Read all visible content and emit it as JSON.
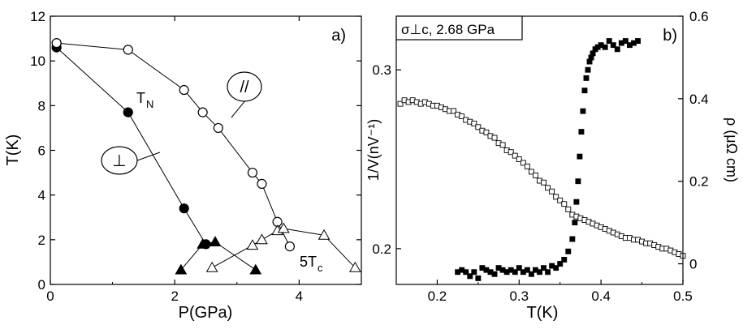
{
  "chart_data": [
    {
      "type": "scatter",
      "panel_label": "a)",
      "xlabel": "P(GPa)",
      "ylabel": "T(K)",
      "xlim": [
        0,
        5
      ],
      "ylim": [
        0,
        12
      ],
      "xticks": [
        0,
        2,
        4
      ],
      "yticks": [
        0,
        2,
        4,
        6,
        8,
        10,
        12
      ],
      "xtick_labels": [
        "0",
        "2",
        "4"
      ],
      "ytick_labels": [
        "0",
        "2",
        "4",
        "6",
        "8",
        "10",
        "12"
      ],
      "grid": false,
      "series": [
        {
          "name": "T_N ⊥",
          "marker": "filled-circle",
          "connected": true,
          "x": [
            0.1,
            1.25,
            2.15,
            2.5
          ],
          "y": [
            10.6,
            7.7,
            3.4,
            1.8
          ]
        },
        {
          "name": "T_N //",
          "marker": "open-circle",
          "connected": true,
          "x": [
            0.1,
            1.25,
            2.15,
            2.45,
            2.7,
            3.25,
            3.4,
            3.65,
            3.85
          ],
          "y": [
            10.8,
            10.5,
            8.7,
            7.7,
            7.0,
            5.0,
            4.5,
            2.8,
            1.7
          ]
        },
        {
          "name": "5T_c ⊥",
          "marker": "filled-triangle",
          "connected": true,
          "x": [
            2.1,
            2.45,
            2.65,
            3.3
          ],
          "y": [
            0.65,
            1.8,
            1.9,
            0.65
          ]
        },
        {
          "name": "5T_c //",
          "marker": "open-triangle",
          "connected": true,
          "x": [
            2.6,
            3.25,
            3.4,
            3.65,
            3.75,
            4.4,
            4.9
          ],
          "y": [
            0.75,
            1.75,
            2.0,
            2.4,
            2.5,
            2.2,
            0.75
          ]
        }
      ],
      "annotations": {
        "tn_main": "T",
        "tn_sub": "N",
        "par_symbol": "//",
        "perp_symbol": "⊥",
        "tc_main": "5T",
        "tc_sub": "c"
      }
    },
    {
      "type": "scatter",
      "panel_label": "b)",
      "title": "σ⊥c, 2.68 GPa",
      "xlabel": "T(K)",
      "ylabel_left": "1/V(nV⁻¹)",
      "ylabel_right": "ρ (μΩ cm)",
      "xlim": [
        0.15,
        0.5
      ],
      "ylim_left": [
        0.18,
        0.33
      ],
      "ylim_right": [
        -0.05,
        0.6
      ],
      "xticks": [
        0.2,
        0.3,
        0.4,
        0.5
      ],
      "xtick_labels": [
        "0.2",
        "0.3",
        "0.4",
        "0.5"
      ],
      "yticks_left": [
        0.2,
        0.3
      ],
      "ytick_labels_left": [
        "0.2",
        "0.3"
      ],
      "yticks_right": [
        0,
        0.2,
        0.4,
        0.6
      ],
      "ytick_labels_right": [
        "0",
        "0.2",
        "0.4",
        "0.6"
      ],
      "grid": false,
      "series": [
        {
          "name": "1/V",
          "axis": "left",
          "marker": "open-square",
          "x": [
            0.155,
            0.16,
            0.165,
            0.17,
            0.175,
            0.18,
            0.185,
            0.19,
            0.195,
            0.2,
            0.205,
            0.21,
            0.215,
            0.22,
            0.225,
            0.23,
            0.235,
            0.24,
            0.245,
            0.25,
            0.255,
            0.26,
            0.265,
            0.27,
            0.275,
            0.28,
            0.285,
            0.29,
            0.295,
            0.3,
            0.305,
            0.31,
            0.315,
            0.32,
            0.325,
            0.33,
            0.335,
            0.34,
            0.345,
            0.35,
            0.355,
            0.36,
            0.365,
            0.37,
            0.375,
            0.38,
            0.385,
            0.39,
            0.395,
            0.4,
            0.405,
            0.41,
            0.415,
            0.42,
            0.425,
            0.43,
            0.435,
            0.44,
            0.445,
            0.45,
            0.455,
            0.46,
            0.465,
            0.47,
            0.475,
            0.48,
            0.485,
            0.49,
            0.495,
            0.5
          ],
          "y": [
            0.281,
            0.283,
            0.282,
            0.283,
            0.282,
            0.281,
            0.282,
            0.281,
            0.28,
            0.28,
            0.279,
            0.278,
            0.277,
            0.277,
            0.275,
            0.274,
            0.272,
            0.271,
            0.27,
            0.268,
            0.266,
            0.265,
            0.263,
            0.262,
            0.259,
            0.258,
            0.255,
            0.254,
            0.252,
            0.25,
            0.248,
            0.246,
            0.243,
            0.241,
            0.238,
            0.237,
            0.234,
            0.232,
            0.229,
            0.227,
            0.225,
            0.222,
            0.219,
            0.218,
            0.217,
            0.216,
            0.215,
            0.214,
            0.213,
            0.212,
            0.211,
            0.21,
            0.209,
            0.208,
            0.207,
            0.206,
            0.206,
            0.205,
            0.205,
            0.204,
            0.203,
            0.203,
            0.202,
            0.201,
            0.2,
            0.2,
            0.199,
            0.198,
            0.197,
            0.196
          ]
        },
        {
          "name": "ρ",
          "axis": "right",
          "marker": "filled-square",
          "x": [
            0.225,
            0.23,
            0.235,
            0.24,
            0.245,
            0.25,
            0.255,
            0.26,
            0.265,
            0.27,
            0.275,
            0.28,
            0.285,
            0.29,
            0.295,
            0.3,
            0.305,
            0.31,
            0.315,
            0.32,
            0.325,
            0.33,
            0.335,
            0.34,
            0.345,
            0.35,
            0.355,
            0.36,
            0.365,
            0.368,
            0.37,
            0.372,
            0.374,
            0.376,
            0.378,
            0.38,
            0.382,
            0.384,
            0.386,
            0.388,
            0.39,
            0.393,
            0.396,
            0.4,
            0.405,
            0.41,
            0.415,
            0.42,
            0.425,
            0.43,
            0.435,
            0.44,
            0.445
          ],
          "y": [
            -0.02,
            -0.015,
            -0.02,
            -0.03,
            -0.02,
            -0.035,
            -0.01,
            -0.015,
            -0.02,
            -0.025,
            -0.01,
            -0.015,
            -0.02,
            -0.015,
            -0.02,
            -0.01,
            -0.02,
            -0.015,
            -0.025,
            -0.015,
            -0.02,
            -0.01,
            -0.02,
            -0.005,
            -0.01,
            0.0,
            0.01,
            0.03,
            0.06,
            0.1,
            0.15,
            0.2,
            0.26,
            0.32,
            0.37,
            0.42,
            0.45,
            0.47,
            0.49,
            0.5,
            0.51,
            0.52,
            0.525,
            0.53,
            0.525,
            0.54,
            0.53,
            0.52,
            0.535,
            0.54,
            0.53,
            0.535,
            0.54
          ]
        }
      ]
    }
  ]
}
